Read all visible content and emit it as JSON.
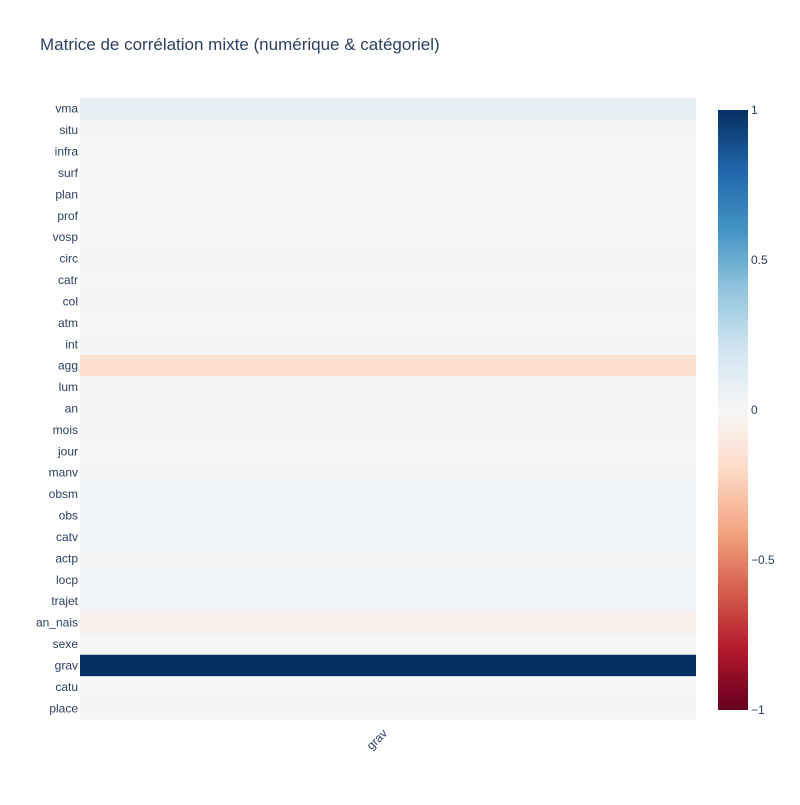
{
  "chart_data": {
    "type": "heatmap",
    "title": "Matrice de corrélation mixte (numérique & catégoriel)",
    "x_categories": [
      "grav"
    ],
    "y_categories": [
      "vma",
      "situ",
      "infra",
      "surf",
      "plan",
      "prof",
      "vosp",
      "circ",
      "catr",
      "col",
      "atm",
      "int",
      "agg",
      "lum",
      "an",
      "mois",
      "jour",
      "manv",
      "obsm",
      "obs",
      "catv",
      "actp",
      "locp",
      "trajet",
      "an_nais",
      "sexe",
      "grav",
      "catu",
      "place"
    ],
    "values": [
      0.09,
      0.02,
      0.01,
      0.01,
      0.01,
      0.0,
      0.01,
      0.02,
      0.01,
      0.02,
      0.01,
      0.02,
      -0.16,
      0.02,
      0.02,
      0.02,
      0.01,
      0.02,
      0.03,
      0.03,
      0.03,
      0.02,
      0.03,
      0.03,
      -0.05,
      0.01,
      1.0,
      0.01,
      0.02
    ],
    "zmin": -1,
    "zmax": 1,
    "colorscale": "RdBu",
    "colorbar_ticks": [
      1,
      0.5,
      0,
      -0.5,
      -1
    ],
    "colorbar_tick_labels": [
      "1",
      "0.5",
      "0",
      "−0.5",
      "−1"
    ]
  }
}
